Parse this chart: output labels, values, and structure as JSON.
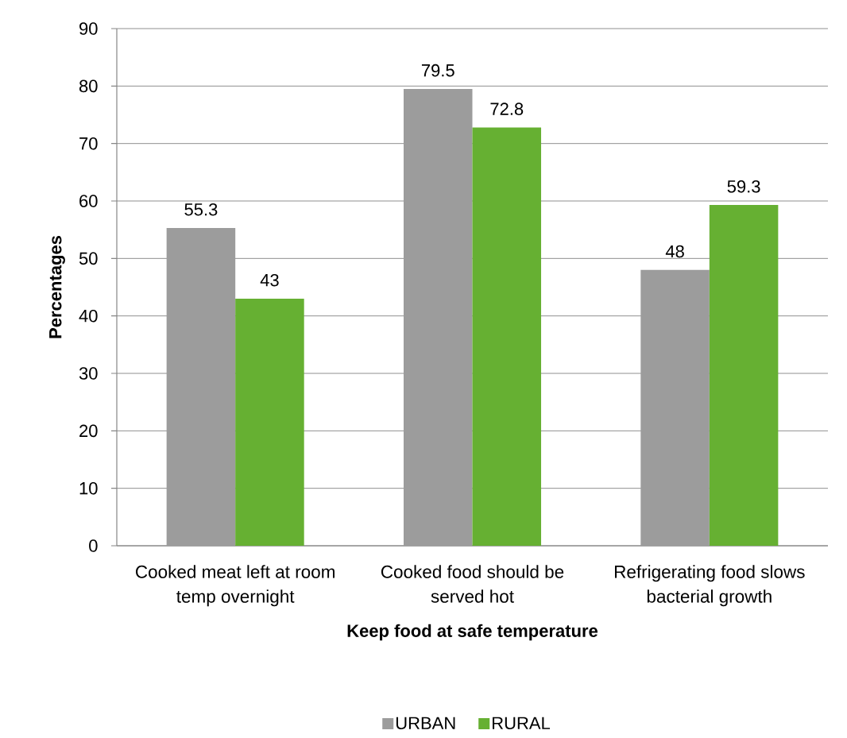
{
  "chart_data": {
    "type": "bar",
    "xlabel": "Keep food at safe temperature",
    "ylabel": "Percentages",
    "categories": [
      "Cooked meat left at room temp overnight",
      "Cooked food should be served hot",
      "Refrigerating food slows bacterial growth"
    ],
    "series": [
      {
        "name": "URBAN",
        "color": "#9c9c9c",
        "values": [
          55.3,
          79.5,
          48
        ]
      },
      {
        "name": "RURAL",
        "color": "#66b032",
        "values": [
          43,
          72.8,
          59.3
        ]
      }
    ],
    "ylim": [
      0,
      90
    ],
    "yticks": [
      0,
      10,
      20,
      30,
      40,
      50,
      60,
      70,
      80,
      90
    ],
    "grid": "y",
    "legend": "bottom",
    "data_labels": true
  }
}
